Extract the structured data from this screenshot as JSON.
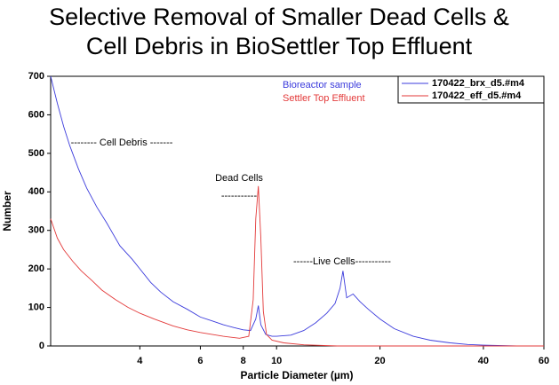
{
  "chart_data": {
    "type": "line",
    "title": [
      "Selective Removal of Smaller Dead Cells &",
      "Cell Debris in BioSettler Top Effluent"
    ],
    "x_label": "Particle Diameter (µm)",
    "y_label": "Number",
    "log_x": true,
    "xlim": [
      2.2,
      60
    ],
    "xticks": [
      4,
      6,
      8,
      10,
      20,
      40,
      60
    ],
    "ylim": [
      0,
      700
    ],
    "yticks": [
      0,
      100,
      200,
      300,
      400,
      500,
      600,
      700
    ],
    "series": [
      {
        "name": "170422_brx_d5.#m4",
        "color": "#3b3bdc",
        "x": [
          2.2,
          2.3,
          2.4,
          2.5,
          2.65,
          2.8,
          3,
          3.2,
          3.5,
          3.8,
          4,
          4.3,
          4.6,
          5,
          5.5,
          6,
          6.5,
          7,
          7.5,
          8,
          8.4,
          8.7,
          8.85,
          9,
          9.3,
          9.7,
          10,
          11,
          12,
          13,
          14,
          14.8,
          15.3,
          15.6,
          16,
          16.7,
          17.5,
          18.5,
          20,
          22,
          25,
          28,
          32,
          36,
          40,
          50,
          60
        ],
        "values": [
          700,
          630,
          570,
          520,
          460,
          410,
          360,
          320,
          260,
          225,
          200,
          165,
          140,
          115,
          95,
          75,
          65,
          55,
          48,
          42,
          40,
          70,
          105,
          55,
          30,
          25,
          25,
          28,
          40,
          60,
          85,
          110,
          150,
          195,
          125,
          135,
          115,
          95,
          70,
          45,
          25,
          15,
          8,
          4,
          2,
          0,
          0
        ]
      },
      {
        "name": "170422_eff_d5.#m4",
        "color": "#e33a3a",
        "x": [
          2.2,
          2.3,
          2.4,
          2.55,
          2.7,
          2.9,
          3.1,
          3.4,
          3.7,
          4,
          4.4,
          5,
          5.5,
          6,
          7,
          7.8,
          8.3,
          8.55,
          8.7,
          8.85,
          9,
          9.15,
          9.35,
          9.7,
          10.5,
          12,
          15,
          20,
          30,
          60
        ],
        "values": [
          330,
          280,
          250,
          220,
          195,
          170,
          145,
          120,
          100,
          85,
          70,
          52,
          42,
          35,
          25,
          20,
          25,
          120,
          330,
          415,
          280,
          90,
          30,
          15,
          8,
          3,
          0,
          0,
          0,
          0
        ]
      }
    ],
    "legend_position": "upper right",
    "annotations": [
      {
        "text": "Bioreactor sample",
        "color": "#3b3bdc"
      },
      {
        "text": "Settler Top Effluent",
        "color": "#e33a3a"
      },
      {
        "text": "-------- Cell Debris -------",
        "color": "#000000"
      },
      {
        "text": "Dead Cells",
        "color": "#000000"
      },
      {
        "text": "-----------",
        "color": "#000000"
      },
      {
        "text": "------Live Cells-----------",
        "color": "#000000"
      }
    ]
  }
}
